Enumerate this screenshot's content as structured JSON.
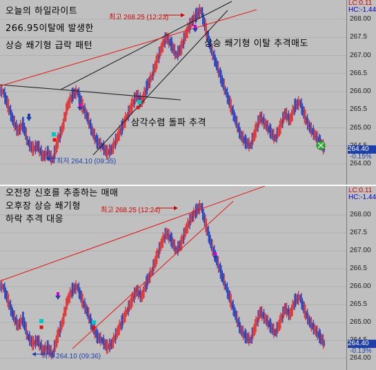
{
  "chart_data": [
    {
      "type": "candlestick",
      "title": "",
      "ylim": [
        263.95,
        268.4
      ],
      "y_ticks": [
        264.0,
        264.5,
        265.0,
        265.5,
        266.0,
        266.5,
        267.0,
        267.5,
        268.0
      ],
      "y_tick_labels": [
        "264.00",
        "264.5",
        "265.00",
        "265.5",
        "266.00",
        "266.5",
        "267.00",
        "267.5",
        "268.00"
      ],
      "header_lc": "LC:0.11",
      "header_hc": "HC:-1.44",
      "last_price": "264.40",
      "last_change": "-0.15%",
      "annotation_title": [
        "오늘의 하일라이트",
        "266.95이탈에 발생한",
        "상승 쐐기형 급락 패턴"
      ],
      "annotation_break": "상승 쐐기형 이탈 추격매도",
      "annotation_triangle": "삼각수렴 돌파 추격",
      "high_label": "최고 268.25 (12:23)",
      "low_label": "최저 264.10 (09:35)",
      "series": [
        {
          "values": [
            266.0,
            265.6,
            265.2,
            264.9,
            265.1,
            264.6,
            264.4,
            264.5,
            264.2,
            264.3,
            264.1,
            264.6,
            265.0,
            265.6,
            265.9,
            266.0,
            265.6,
            265.3,
            264.9,
            264.6,
            264.5,
            264.3,
            264.4,
            264.7,
            265.0,
            265.3,
            265.6,
            265.9,
            265.7,
            266.1,
            266.4,
            266.8,
            267.2,
            267.5,
            267.3,
            267.0,
            267.2,
            267.6,
            267.9,
            268.1,
            268.25,
            267.7,
            267.2,
            266.8,
            266.4,
            266.0,
            265.6,
            265.2,
            264.8,
            264.6,
            264.5,
            264.9,
            265.3,
            265.1,
            264.9,
            264.7,
            265.0,
            265.4,
            265.2,
            265.6,
            265.7,
            265.3,
            265.0,
            264.8,
            264.6,
            264.4
          ]
        }
      ]
    },
    {
      "type": "candlestick",
      "title": "",
      "ylim": [
        263.95,
        268.4
      ],
      "y_ticks": [
        264.0,
        264.5,
        265.0,
        265.5,
        266.0,
        266.5,
        267.0,
        267.5,
        268.0
      ],
      "y_tick_labels": [
        "264.00",
        "264.5",
        "265.00",
        "265.5",
        "266.00",
        "266.5",
        "267.00",
        "267.5",
        "268.00"
      ],
      "header_lc": "LC:0.11",
      "header_hc": "HC:-1.44",
      "last_price": "264.40",
      "last_change": "-0.13%",
      "annotation_title": [
        "오전장 신호를 추종하는 매매",
        "오후장 상승 쐐기형",
        "하락 추격 대응"
      ],
      "high_label": "최고 268.25 (12:24)",
      "low_label": "최저 264.10 (09:36)",
      "series": [
        {
          "values": [
            266.0,
            265.6,
            265.2,
            264.9,
            265.1,
            264.6,
            264.4,
            264.5,
            264.2,
            264.3,
            264.1,
            264.6,
            265.0,
            265.6,
            265.9,
            266.0,
            265.6,
            265.3,
            264.9,
            264.6,
            264.5,
            264.3,
            264.4,
            264.7,
            265.0,
            265.3,
            265.6,
            265.9,
            265.7,
            266.1,
            266.4,
            266.8,
            267.2,
            267.5,
            267.3,
            267.0,
            267.2,
            267.6,
            267.9,
            268.1,
            268.25,
            267.7,
            267.2,
            266.8,
            266.4,
            266.0,
            265.6,
            265.2,
            264.8,
            264.6,
            264.5,
            264.9,
            265.3,
            265.1,
            264.9,
            264.7,
            265.0,
            265.4,
            265.2,
            265.6,
            265.7,
            265.3,
            265.0,
            264.8,
            264.6,
            264.4
          ]
        }
      ]
    }
  ],
  "colors": {
    "background": "#c0c0c0",
    "up": "#e03030",
    "down": "#2040c0",
    "trend_red": "#e02020",
    "trend_black": "#202020"
  }
}
